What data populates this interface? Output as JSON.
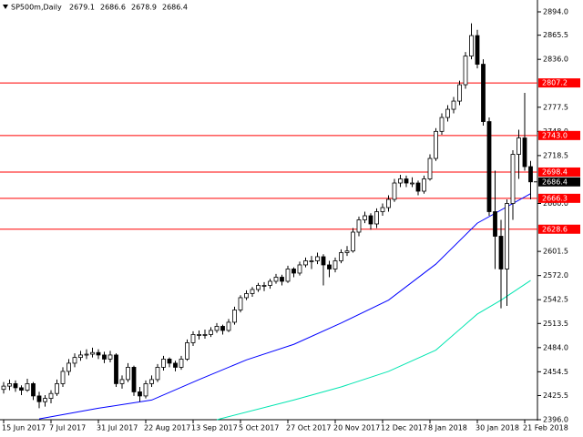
{
  "chart_data": {
    "type": "candlestick",
    "symbol": "SP500m,Daily",
    "header_values": [
      "2679.1",
      "2686.6",
      "2678.9",
      "2686.4"
    ],
    "categories": [
      "15 Jun 2017",
      null,
      null,
      null,
      null,
      null,
      null,
      null,
      "7 Jul 2017",
      null,
      null,
      null,
      null,
      null,
      null,
      null,
      "31 Jul 2017",
      null,
      null,
      null,
      null,
      null,
      null,
      null,
      "22 Aug 2017",
      null,
      null,
      null,
      null,
      null,
      null,
      null,
      "13 Sep 2017",
      null,
      null,
      null,
      null,
      null,
      null,
      null,
      "5 Oct 2017",
      null,
      null,
      null,
      null,
      null,
      null,
      null,
      "27 Oct 2017",
      null,
      null,
      null,
      null,
      null,
      null,
      null,
      "20 Nov 2017",
      null,
      null,
      null,
      null,
      null,
      null,
      null,
      "12 Dec 2017",
      null,
      null,
      null,
      null,
      null,
      null,
      null,
      "8 Jan 2018",
      null,
      null,
      null,
      null,
      null,
      null,
      null,
      "30 Jan 2018",
      null,
      null,
      null,
      null,
      null,
      null,
      null,
      "21 Feb 2018",
      null
    ],
    "ohlc": [
      [
        2433,
        2442,
        2428,
        2437
      ],
      [
        2437,
        2445,
        2432,
        2440
      ],
      [
        2440,
        2444,
        2430,
        2435
      ],
      [
        2435,
        2438,
        2426,
        2432
      ],
      [
        2432,
        2446,
        2430,
        2440
      ],
      [
        2440,
        2442,
        2420,
        2425
      ],
      [
        2425,
        2430,
        2410,
        2418
      ],
      [
        2418,
        2426,
        2412,
        2422
      ],
      [
        2422,
        2432,
        2416,
        2428
      ],
      [
        2428,
        2445,
        2425,
        2440
      ],
      [
        2440,
        2460,
        2436,
        2455
      ],
      [
        2455,
        2470,
        2450,
        2465
      ],
      [
        2465,
        2477,
        2460,
        2472
      ],
      [
        2472,
        2480,
        2468,
        2475
      ],
      [
        2475,
        2482,
        2470,
        2476
      ],
      [
        2476,
        2484,
        2472,
        2478
      ],
      [
        2478,
        2482,
        2470,
        2475
      ],
      [
        2475,
        2479,
        2465,
        2470
      ],
      [
        2470,
        2480,
        2466,
        2475
      ],
      [
        2475,
        2477,
        2436,
        2440
      ],
      [
        2440,
        2450,
        2434,
        2445
      ],
      [
        2445,
        2465,
        2442,
        2460
      ],
      [
        2460,
        2462,
        2425,
        2430
      ],
      [
        2430,
        2436,
        2418,
        2425
      ],
      [
        2425,
        2444,
        2422,
        2440
      ],
      [
        2440,
        2450,
        2436,
        2445
      ],
      [
        2445,
        2464,
        2442,
        2460
      ],
      [
        2460,
        2474,
        2456,
        2470
      ],
      [
        2470,
        2472,
        2460,
        2465
      ],
      [
        2465,
        2468,
        2455,
        2460
      ],
      [
        2460,
        2474,
        2457,
        2470
      ],
      [
        2470,
        2494,
        2468,
        2490
      ],
      [
        2490,
        2504,
        2486,
        2500
      ],
      [
        2500,
        2505,
        2494,
        2500
      ],
      [
        2500,
        2506,
        2495,
        2500
      ],
      [
        2500,
        2509,
        2497,
        2505
      ],
      [
        2505,
        2514,
        2502,
        2510
      ],
      [
        2510,
        2512,
        2500,
        2505
      ],
      [
        2505,
        2519,
        2503,
        2515
      ],
      [
        2515,
        2534,
        2512,
        2530
      ],
      [
        2530,
        2548,
        2527,
        2545
      ],
      [
        2545,
        2554,
        2542,
        2550
      ],
      [
        2550,
        2558,
        2546,
        2555
      ],
      [
        2555,
        2563,
        2552,
        2560
      ],
      [
        2560,
        2564,
        2553,
        2560
      ],
      [
        2560,
        2568,
        2556,
        2565
      ],
      [
        2565,
        2574,
        2562,
        2570
      ],
      [
        2570,
        2573,
        2560,
        2565
      ],
      [
        2565,
        2584,
        2563,
        2580
      ],
      [
        2580,
        2582,
        2570,
        2575
      ],
      [
        2575,
        2589,
        2572,
        2585
      ],
      [
        2585,
        2594,
        2582,
        2590
      ],
      [
        2590,
        2596,
        2580,
        2590
      ],
      [
        2590,
        2600,
        2586,
        2595
      ],
      [
        2595,
        2598,
        2560,
        2585
      ],
      [
        2585,
        2590,
        2570,
        2580
      ],
      [
        2580,
        2594,
        2576,
        2590
      ],
      [
        2590,
        2604,
        2587,
        2600
      ],
      [
        2600,
        2608,
        2596,
        2602
      ],
      [
        2602,
        2630,
        2600,
        2625
      ],
      [
        2625,
        2644,
        2620,
        2640
      ],
      [
        2640,
        2650,
        2636,
        2645
      ],
      [
        2645,
        2648,
        2628,
        2635
      ],
      [
        2635,
        2654,
        2630,
        2650
      ],
      [
        2650,
        2660,
        2645,
        2655
      ],
      [
        2655,
        2670,
        2650,
        2665
      ],
      [
        2665,
        2690,
        2662,
        2685
      ],
      [
        2685,
        2695,
        2680,
        2690
      ],
      [
        2690,
        2694,
        2680,
        2685
      ],
      [
        2685,
        2692,
        2680,
        2685
      ],
      [
        2685,
        2688,
        2670,
        2675
      ],
      [
        2675,
        2694,
        2672,
        2690
      ],
      [
        2690,
        2720,
        2688,
        2715
      ],
      [
        2715,
        2752,
        2712,
        2748
      ],
      [
        2748,
        2770,
        2744,
        2765
      ],
      [
        2765,
        2780,
        2760,
        2775
      ],
      [
        2775,
        2790,
        2770,
        2785
      ],
      [
        2785,
        2810,
        2780,
        2805
      ],
      [
        2805,
        2845,
        2800,
        2840
      ],
      [
        2840,
        2880,
        2836,
        2865
      ],
      [
        2865,
        2872,
        2825,
        2830
      ],
      [
        2830,
        2836,
        2755,
        2760
      ],
      [
        2760,
        2765,
        2645,
        2650
      ],
      [
        2650,
        2700,
        2580,
        2620
      ],
      [
        2620,
        2640,
        2532,
        2580
      ],
      [
        2580,
        2665,
        2535,
        2660
      ],
      [
        2660,
        2725,
        2640,
        2720
      ],
      [
        2720,
        2750,
        2690,
        2740
      ],
      [
        2740,
        2795,
        2700,
        2705
      ],
      [
        2705,
        2712,
        2665,
        2686.4
      ]
    ],
    "bull_color": "#ffffff",
    "bear_color": "#000000",
    "ma": [
      {
        "color": "#0000ff",
        "x": [
          6,
          16,
          25,
          33,
          41,
          49,
          57,
          65,
          73,
          80,
          89
        ],
        "values": [
          2397,
          2410,
          2420,
          2445,
          2469,
          2488,
          2514,
          2542,
          2586,
          2636,
          2672
        ]
      },
      {
        "color": "#00e5b0",
        "x": [
          36,
          49,
          57,
          65,
          73,
          80,
          84,
          89
        ],
        "values": [
          2396,
          2420,
          2436,
          2455,
          2481,
          2525,
          2542,
          2566
        ]
      }
    ],
    "levels_color": "#ff0000",
    "levels": [
      {
        "value": 2807.2,
        "label": "2807.2"
      },
      {
        "value": 2743,
        "label": "2743.0"
      },
      {
        "value": 2698.4,
        "label": "2698.4"
      },
      {
        "value": 2666.3,
        "label": "2666.3"
      },
      {
        "value": 2628.6,
        "label": "2628.6"
      }
    ],
    "last_price": {
      "value": 2686.4,
      "label": "2686.4"
    },
    "ylim": [
      2396,
      2894
    ],
    "yticks": [
      {
        "value": 2396,
        "label": "2396.0"
      },
      2425.5,
      2454.5,
      {
        "value": 2484,
        "label": "2484.0"
      },
      2513.5,
      2542.5,
      {
        "value": 2572,
        "label": "2572.0"
      },
      2601.5,
      {
        "value": 2660,
        "label": "2660.0"
      },
      2718.5,
      {
        "value": 2748,
        "label": "2748.0"
      },
      2777.5,
      {
        "value": 2836,
        "label": "2836.0"
      },
      2865.5,
      {
        "value": 2894,
        "label": "2894.0"
      }
    ]
  }
}
